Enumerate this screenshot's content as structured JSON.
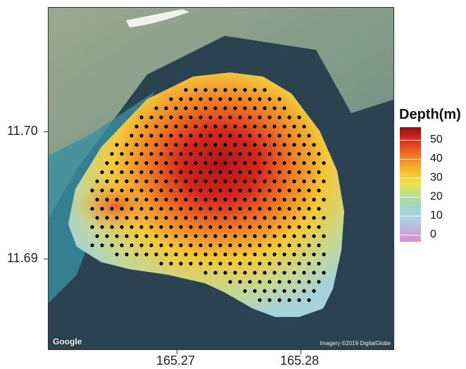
{
  "map": {
    "google_label": "Google",
    "imagery_credit": "Imagery ©2019 DigitalGlobe",
    "y_ticks": [
      "11.70",
      "11.69"
    ],
    "x_ticks": [
      "165.27",
      "165.28"
    ]
  },
  "legend": {
    "title": "Depth(m)",
    "labels": [
      "50",
      "40",
      "30",
      "20",
      "10",
      "0"
    ]
  },
  "colors": {
    "deep": "#8e1210",
    "mid": "#f5c431",
    "shallow": "#a9d3e4",
    "points": "#000000"
  }
}
